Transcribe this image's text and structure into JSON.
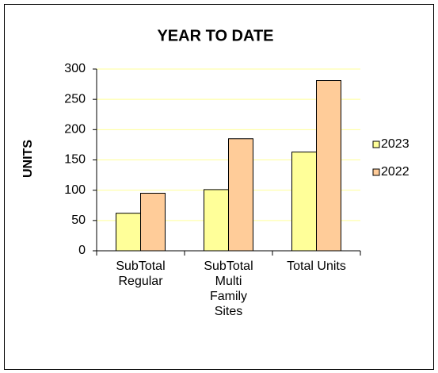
{
  "chart_data": {
    "type": "bar",
    "title": "YEAR TO DATE",
    "y_label": "UNITS",
    "categories": [
      "SubTotal\nRegular",
      "SubTotal\nMulti\nFamily\nSites",
      "Total Units"
    ],
    "series": [
      {
        "name": "2023",
        "color": "#ffff99",
        "values": [
          62,
          101,
          163
        ]
      },
      {
        "name": "2022",
        "color": "#ffcc99",
        "values": [
          95,
          185,
          281
        ]
      }
    ],
    "ylim": [
      0,
      300
    ],
    "yticks": [
      0,
      50,
      100,
      150,
      200,
      250,
      300
    ],
    "grid": true,
    "legend": "right"
  }
}
